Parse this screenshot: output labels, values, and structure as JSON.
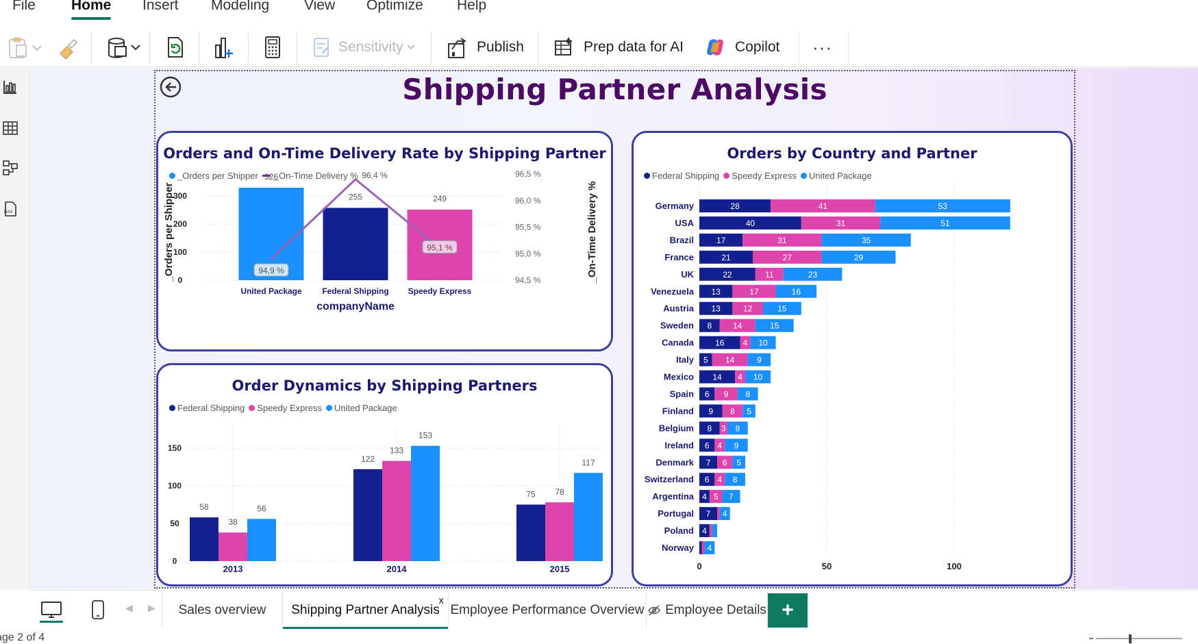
{
  "menu": {
    "items": [
      "File",
      "Home",
      "Insert",
      "Modeling",
      "View",
      "Optimize",
      "Help"
    ],
    "active": "Home"
  },
  "toolbar": {
    "sensitivity": "Sensitivity",
    "publish": "Publish",
    "prep_data": "Prep data for AI",
    "copilot": "Copilot",
    "more": "···"
  },
  "report": {
    "title": "Shipping Partner Analysis"
  },
  "colors": {
    "federal": "#15208f",
    "speedy": "#dd45ad",
    "united": "#1a90ff",
    "line": "#9b63b6",
    "title": "#4b0a63"
  },
  "chart_data": [
    {
      "id": "orders_ontime",
      "type": "bar",
      "title": "Orders and On-Time Delivery Rate by Shipping Partner",
      "legend": [
        "_Orders per Shipper",
        "_On-Time Delivery %"
      ],
      "xlabel": "companyName",
      "ylabel": "_Orders per Shipper",
      "y2label": "_On-Time Delivery %",
      "categories": [
        "United Package",
        "Federal Shipping",
        "Speedy Express"
      ],
      "bars": [
        326,
        255,
        249
      ],
      "bar_colors": [
        "#1a90ff",
        "#15208f",
        "#dd45ad"
      ],
      "line": [
        94.9,
        96.4,
        95.1
      ],
      "line_labels": [
        "94,9 %",
        "96,4 %",
        "95,1 %"
      ],
      "ylim": [
        0,
        326
      ],
      "yticks": [
        0,
        100,
        200,
        300
      ],
      "y2lim": [
        94.5,
        96.5
      ],
      "y2ticks": [
        "96,5 %",
        "96,0 %",
        "95,5 %",
        "95,0 %",
        "94,5 %"
      ]
    },
    {
      "id": "order_dynamics",
      "type": "bar",
      "title": "Order Dynamics by Shipping Partners",
      "legend": [
        "Federal Shipping",
        "Speedy Express",
        "United Package"
      ],
      "categories": [
        "2013",
        "2014",
        "2015"
      ],
      "series": [
        {
          "name": "Federal Shipping",
          "values": [
            58,
            122,
            75
          ]
        },
        {
          "name": "Speedy Express",
          "values": [
            38,
            133,
            78
          ]
        },
        {
          "name": "United Package",
          "values": [
            56,
            153,
            117
          ]
        }
      ],
      "ylim": [
        0,
        160
      ],
      "yticks": [
        0,
        50,
        100,
        150
      ]
    },
    {
      "id": "country_partner",
      "type": "bar",
      "orientation": "horizontal-stacked",
      "title": "Orders by Country and Partner",
      "legend": [
        "Federal Shipping",
        "Speedy Express",
        "United Package"
      ],
      "categories": [
        "Germany",
        "USA",
        "Brazil",
        "France",
        "UK",
        "Venezuela",
        "Austria",
        "Sweden",
        "Canada",
        "Italy",
        "Mexico",
        "Spain",
        "Finland",
        "Belgium",
        "Ireland",
        "Denmark",
        "Switzerland",
        "Argentina",
        "Portugal",
        "Poland",
        "Norway"
      ],
      "series": [
        {
          "name": "Federal Shipping",
          "values": [
            28,
            40,
            17,
            21,
            22,
            13,
            13,
            8,
            16,
            5,
            14,
            6,
            9,
            8,
            6,
            7,
            6,
            4,
            7,
            4,
            1
          ]
        },
        {
          "name": "Speedy Express",
          "values": [
            41,
            31,
            31,
            27,
            11,
            17,
            12,
            14,
            4,
            14,
            4,
            9,
            8,
            3,
            4,
            6,
            4,
            5,
            1,
            1,
            1
          ]
        },
        {
          "name": "United Package",
          "values": [
            53,
            51,
            35,
            29,
            23,
            16,
            15,
            15,
            10,
            9,
            10,
            8,
            5,
            8,
            9,
            5,
            8,
            7,
            4,
            2,
            4
          ]
        }
      ],
      "labels": [
        [
          "28",
          "41",
          "53"
        ],
        [
          "40",
          "31",
          "51"
        ],
        [
          "17",
          "31",
          "35"
        ],
        [
          "21",
          "27",
          "29"
        ],
        [
          "22",
          "11",
          "23"
        ],
        [
          "13",
          "17",
          "16"
        ],
        [
          "13",
          "12",
          "15"
        ],
        [
          "8",
          "14",
          "15"
        ],
        [
          "16",
          "4",
          "10"
        ],
        [
          "5",
          "14",
          "9"
        ],
        [
          "14",
          "4",
          "10"
        ],
        [
          "6",
          "9",
          "8"
        ],
        [
          "9",
          "8",
          "5"
        ],
        [
          "8",
          "3",
          "8"
        ],
        [
          "6",
          "4",
          "9"
        ],
        [
          "7",
          "6",
          "5"
        ],
        [
          "6",
          "4",
          "8"
        ],
        [
          "4",
          "5",
          "7"
        ],
        [
          "7",
          "",
          "4"
        ],
        [
          "4",
          "",
          ""
        ],
        [
          "",
          "",
          "4"
        ]
      ],
      "xlim": [
        0,
        130
      ],
      "xticks": [
        0,
        50,
        100
      ]
    }
  ],
  "pages": {
    "tabs": [
      "Sales overview",
      "Shipping Partner Analysis",
      "Employee Performance Overview",
      "Employee Details"
    ],
    "active": "Shipping Partner Analysis",
    "close": "x",
    "add": "+"
  },
  "status": {
    "page_text": "age 2 of 4"
  }
}
